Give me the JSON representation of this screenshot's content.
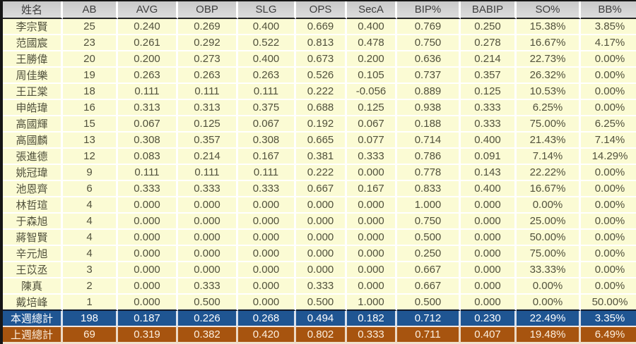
{
  "chart_data": {
    "type": "table",
    "title": "",
    "columns": [
      "姓名",
      "AB",
      "AVG",
      "OBP",
      "SLG",
      "OPS",
      "SecA",
      "BIP%",
      "BABIP",
      "SO%",
      "BB%"
    ],
    "column_keys": [
      "name",
      "ab",
      "avg",
      "obp",
      "slg",
      "ops",
      "seca",
      "bip-pct",
      "babip",
      "so-pct",
      "bb-pct"
    ],
    "rows": [
      [
        "李宗賢",
        "25",
        "0.240",
        "0.269",
        "0.400",
        "0.669",
        "0.400",
        "0.769",
        "0.250",
        "15.38%",
        "3.85%"
      ],
      [
        "范國宸",
        "23",
        "0.261",
        "0.292",
        "0.522",
        "0.813",
        "0.478",
        "0.750",
        "0.278",
        "16.67%",
        "4.17%"
      ],
      [
        "王勝偉",
        "20",
        "0.200",
        "0.273",
        "0.400",
        "0.673",
        "0.200",
        "0.636",
        "0.214",
        "22.73%",
        "0.00%"
      ],
      [
        "周佳樂",
        "19",
        "0.263",
        "0.263",
        "0.263",
        "0.526",
        "0.105",
        "0.737",
        "0.357",
        "26.32%",
        "0.00%"
      ],
      [
        "王正棠",
        "18",
        "0.111",
        "0.111",
        "0.111",
        "0.222",
        "-0.056",
        "0.889",
        "0.125",
        "10.53%",
        "0.00%"
      ],
      [
        "申皓瑋",
        "16",
        "0.313",
        "0.313",
        "0.375",
        "0.688",
        "0.125",
        "0.938",
        "0.333",
        "6.25%",
        "0.00%"
      ],
      [
        "高國輝",
        "15",
        "0.067",
        "0.125",
        "0.067",
        "0.192",
        "0.067",
        "0.188",
        "0.333",
        "75.00%",
        "6.25%"
      ],
      [
        "高國麟",
        "13",
        "0.308",
        "0.357",
        "0.308",
        "0.665",
        "0.077",
        "0.714",
        "0.400",
        "21.43%",
        "7.14%"
      ],
      [
        "張進德",
        "12",
        "0.083",
        "0.214",
        "0.167",
        "0.381",
        "0.333",
        "0.786",
        "0.091",
        "7.14%",
        "14.29%"
      ],
      [
        "姚冠瑋",
        "9",
        "0.111",
        "0.111",
        "0.111",
        "0.222",
        "0.000",
        "0.778",
        "0.143",
        "22.22%",
        "0.00%"
      ],
      [
        "池恩齊",
        "6",
        "0.333",
        "0.333",
        "0.333",
        "0.667",
        "0.167",
        "0.833",
        "0.400",
        "16.67%",
        "0.00%"
      ],
      [
        "林哲瑄",
        "4",
        "0.000",
        "0.000",
        "0.000",
        "0.000",
        "0.000",
        "1.000",
        "0.000",
        "0.00%",
        "0.00%"
      ],
      [
        "于森旭",
        "4",
        "0.000",
        "0.000",
        "0.000",
        "0.000",
        "0.000",
        "0.750",
        "0.000",
        "25.00%",
        "0.00%"
      ],
      [
        "蔣智賢",
        "4",
        "0.000",
        "0.000",
        "0.000",
        "0.000",
        "0.000",
        "0.500",
        "0.000",
        "50.00%",
        "0.00%"
      ],
      [
        "辛元旭",
        "4",
        "0.000",
        "0.000",
        "0.000",
        "0.000",
        "0.000",
        "0.250",
        "0.000",
        "75.00%",
        "0.00%"
      ],
      [
        "王苡丞",
        "3",
        "0.000",
        "0.000",
        "0.000",
        "0.000",
        "0.000",
        "0.667",
        "0.000",
        "33.33%",
        "0.00%"
      ],
      [
        "陳真",
        "2",
        "0.000",
        "0.333",
        "0.000",
        "0.333",
        "0.000",
        "0.667",
        "0.000",
        "0.00%",
        "0.00%"
      ],
      [
        "戴培峰",
        "1",
        "0.000",
        "0.500",
        "0.000",
        "0.500",
        "1.000",
        "0.500",
        "0.000",
        "0.00%",
        "50.00%"
      ]
    ],
    "total_rows": [
      {
        "key": "this-week-total",
        "label": "本週總計",
        "values": [
          "198",
          "0.187",
          "0.226",
          "0.268",
          "0.494",
          "0.182",
          "0.712",
          "0.230",
          "22.49%",
          "3.35%"
        ]
      },
      {
        "key": "last-week-total",
        "label": "上週總計",
        "values": [
          "69",
          "0.319",
          "0.382",
          "0.420",
          "0.802",
          "0.333",
          "0.711",
          "0.407",
          "19.48%",
          "6.49%"
        ]
      }
    ]
  },
  "colors": {
    "frame": "#161616",
    "header_bg_top": "#C9C9C9",
    "header_bg_bottom": "#DCDCDC",
    "header_text": "#3F3F3F",
    "header_divider": "#262626",
    "body_row_bg": "#FBFBD4",
    "body_text": "#51513C",
    "grid_line": "#FFFFFF",
    "totals_top_divider": "#131C2E",
    "totals_mid_divider": "#F3E6DE",
    "bottom_edge": "#EFE2D0",
    "this_week_bg": "#1F5592",
    "this_week_text": "#FFFFFF",
    "this_week_divider": "#D9E2EF",
    "last_week_bg": "#A7540F",
    "last_week_text": "#FCEFDF",
    "last_week_divider": "#EDD9C4"
  }
}
